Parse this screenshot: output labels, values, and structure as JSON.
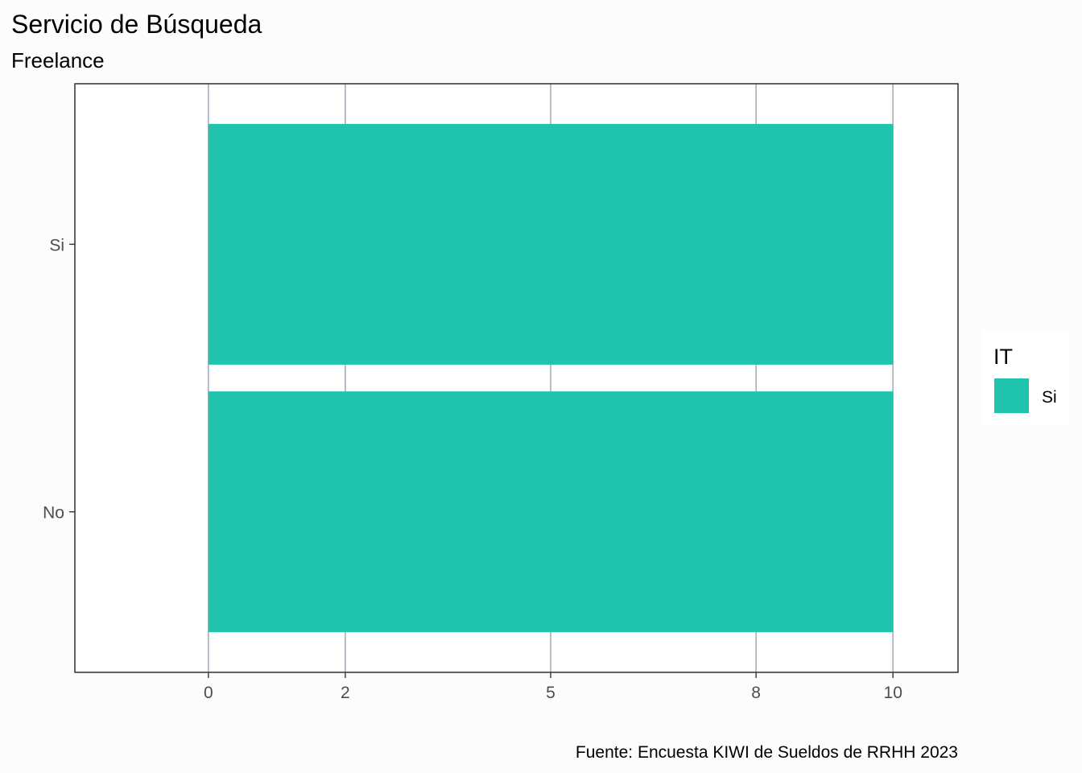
{
  "chart_data": {
    "type": "bar",
    "orientation": "horizontal",
    "title": "Servicio de Búsqueda",
    "subtitle": "Freelance",
    "caption": "Fuente: Encuesta KIWI de Sueldos de RRHH 2023",
    "categories": [
      "No",
      "Si"
    ],
    "series": [
      {
        "name": "Si",
        "values": [
          10,
          10
        ],
        "color": "#20c4ac"
      }
    ],
    "x_ticks": [
      0,
      2,
      5,
      8,
      10
    ],
    "xlim": [
      -1.95,
      10.95
    ],
    "legend": {
      "title": "IT",
      "position": "right"
    },
    "grid": true,
    "colors": {
      "bar": "#20c4ac",
      "background": "#fbfdfd",
      "panel": "#ffffff",
      "gridline": "#a9adbd"
    }
  }
}
